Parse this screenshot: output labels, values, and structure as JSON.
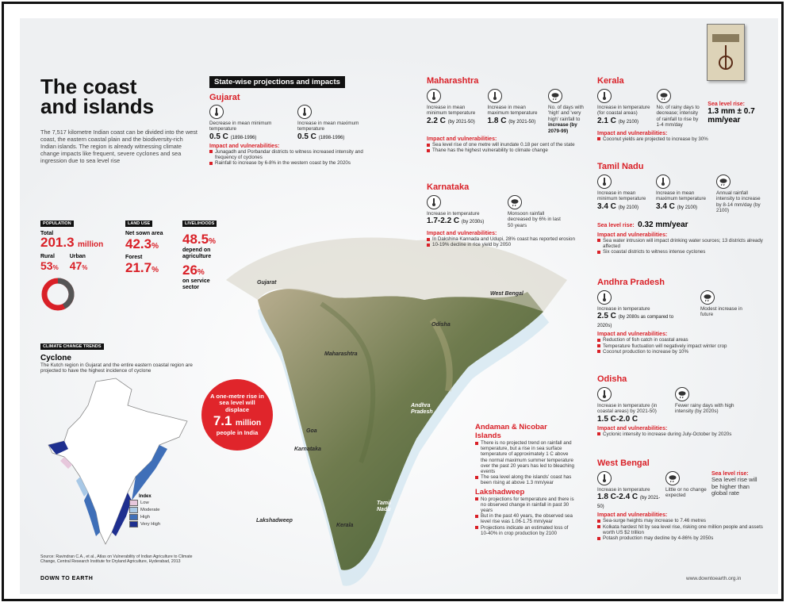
{
  "title": "The coast\nand islands",
  "intro": "The 7,517 kilometre Indian coast can be divided into the west coast, the eastern coastal plain and the biodiversity-rich Indian islands. The region is already witnessing climate change impacts like frequent, severe cyclones and sea ingression due to sea level rise",
  "population": {
    "tag": "POPULATION",
    "total_label": "Total",
    "total_value": "201.3",
    "total_unit": "million",
    "rural_label": "Rural",
    "rural_value": "53",
    "urban_label": "Urban",
    "urban_value": "47",
    "pct": "%"
  },
  "landuse": {
    "tag": "LAND USE",
    "net_label": "Net sown area",
    "net_value": "42.3",
    "forest_label": "Forest",
    "forest_value": "21.7",
    "pct": "%"
  },
  "livelihoods": {
    "tag": "LIVELIHOODS",
    "agri_value": "48.5",
    "agri_label": "depend on agriculture",
    "service_value": "26",
    "service_label": "on service sector",
    "pct": "%"
  },
  "climate_tag": "CLIMATE CHANGE TRENDS",
  "cyclone": {
    "title": "Cyclone",
    "text": "The Kutch region in Gujarat and the entire eastern coastal region are projected to have the highest incidence of cyclone"
  },
  "legend": {
    "title": "Index",
    "items": [
      "Low",
      "Moderate",
      "High",
      "Very High"
    ],
    "colors": [
      "#e7c7dc",
      "#a8c8e6",
      "#3f6fb8",
      "#1e2f8f"
    ]
  },
  "source": "Source: Ravindran C.A., et al., Atlas on Vulnerability of Indian Agriculture to Climate Change, Central Research Institute for Dryland Agriculture, Hyderabad, 2013",
  "footer_left": "DOWN TO EARTH",
  "footer_right": "www.downtoearth.org.in",
  "statewise_title": "State-wise projections and impacts",
  "gujarat": {
    "name": "Gujarat",
    "p1_label": "Decrease in mean minimum temperature",
    "p1_value": "0.5 C",
    "p1_period": "(1898-1996)",
    "p2_label": "Increase in mean maximum temperature",
    "p2_value": "0.5 C",
    "p2_period": "(1898-1996)",
    "iv": "Impact and vulnerabilities:",
    "bullets": [
      "Junagadh and Porbandar districts to witness increased intensity and frequency of cyclones",
      "Rainfall to increase by 6-8% in the western coast by the 2020s"
    ]
  },
  "maharashtra": {
    "name": "Maharashtra",
    "p1_label": "Increase in mean minimum temperature",
    "p1_value": "2.2 C",
    "p1_period": "(by 2021-50)",
    "p2_label": "Increase in mean maximum temperature",
    "p2_value": "1.8 C",
    "p2_period": "(by 2021-50)",
    "p3_label": "No. of days with 'high' and 'very high' rainfall to",
    "p3_value": "increase (by 2079-99)",
    "iv": "Impact and vulnerabilities:",
    "bullets": [
      "Sea level rise of one metre will inundate 0.18 per cent of the state",
      "Thane has the highest vulnerability to climate change"
    ]
  },
  "karnataka": {
    "name": "Karnataka",
    "p1_label": "Increase in temperature",
    "p1_value": "1.7-2.2 C",
    "p1_period": "(by 2030s)",
    "p2_label": "Monsoon rainfall decreased by 6% in last 50 years",
    "iv": "Impact and vulnerabilities:",
    "bullets": [
      "In Dakshina Kannada and Udupi, 28% coast has reported erosion",
      "10-19% decline in rice yield by 2050"
    ]
  },
  "kerala": {
    "name": "Kerala",
    "p1_label": "Increase in temperature (for coastal areas)",
    "p1_value": "2.1 C",
    "p1_period": "(by 2100)",
    "p2_label": "No. of rainy days to decrease; intensity of rainfall to rise by 1-4 mm/day",
    "slr_label": "Sea level rise:",
    "slr_value": "1.3 mm ± 0.7 mm/year",
    "iv": "Impact and vulnerabilities:",
    "bullets": [
      "Coconut yields are projected to increase by 30%"
    ]
  },
  "tamilnadu": {
    "name": "Tamil Nadu",
    "p1_label": "Increase in mean minimum temperature",
    "p1_value": "3.4 C",
    "p1_period": "(by 2100)",
    "p2_label": "Increase in mean maximum temperature",
    "p2_value": "3.4 C",
    "p2_period": "(by 2100)",
    "p3_label": "Annual rainfall intensity to increase by 8-14 mm/day (by 2100)",
    "slr_label": "Sea level rise:",
    "slr_value": "0.32 mm/year",
    "iv": "Impact and vulnerabilities:",
    "bullets": [
      "Sea water intrusion will impact drinking water sources; 13 districts already affected",
      "Six coastal districts to witness intense cyclones"
    ]
  },
  "andhra": {
    "name": "Andhra Pradesh",
    "p1_label": "Increase in temperature",
    "p1_value": "2.5 C",
    "p1_period": "(by 2080s as compared to 2020s)",
    "p2_label": "Modest increase in future",
    "iv": "Impact and vulnerabilities:",
    "bullets": [
      "Reduction of fish catch in coastal areas",
      "Temperature fluctuation will negatively impact winter crop",
      "Coconut production to increase by 10%"
    ]
  },
  "odisha": {
    "name": "Odisha",
    "p1_label": "Increase in temperature (in coastal areas) by 2021-50)",
    "p1_value": "1.5 C-2.0 C",
    "p2_label": "Fewer rainy days with high intensity (by 2020s)",
    "iv": "Impact and vulnerabilities:",
    "bullets": [
      "Cyclonic intensity to increase during July-October by 2020s"
    ]
  },
  "westbengal": {
    "name": "West Bengal",
    "p1_label": "Increase in temperature",
    "p1_value": "1.8 C-2.4 C",
    "p1_period": "(by 2021-50)",
    "p2_label": "Little or no change expected",
    "slr_label": "Sea level rise:",
    "slr_value": "Sea level rise will be higher than global rate",
    "iv": "Impact and vulnerabilities:",
    "bullets": [
      "Sea-surge heights may increase to 7.46 metres",
      "Kolkata hardest hit by sea level rise, risking one million people and assets worth US $2 trillion",
      "Potash production may decline by 4-86% by 2050s"
    ]
  },
  "andaman": {
    "name": "Andaman & Nicobar Islands",
    "bullets": [
      "There is no projected trend on rainfall and temperature, but a rise in sea surface temperature of approximately 1 C above the normal maximum summer temperature over the past 20 years has led to bleaching events",
      "The sea level along the islands' coast has been rising at above 1.3 mm/year"
    ]
  },
  "lakshadweep": {
    "name": "Lakshadweep",
    "bullets": [
      "No projections for temperature and there is no observed change in rainfall in past 30 years",
      "But in the past 40 years, the observed sea level rise was 1.06-1.75 mm/year",
      "Projections indicate an estimated loss of 10-40% in crop production by 2100"
    ]
  },
  "callout": {
    "line1": "A one-metre rise in sea level will displace",
    "value": "7.1",
    "unit": "million",
    "line2": "people in India"
  },
  "map_labels": {
    "gujarat": "Gujarat",
    "westbengal": "West Bengal",
    "odisha": "Odisha",
    "maharashtra": "Maharashtra",
    "andhra": "Andhra Pradesh",
    "goa": "Goa",
    "karnataka": "Karnataka",
    "tamilnadu": "Tamil Nadu",
    "kerala": "Kerala",
    "lakshadweep": "Lakshadweep"
  }
}
